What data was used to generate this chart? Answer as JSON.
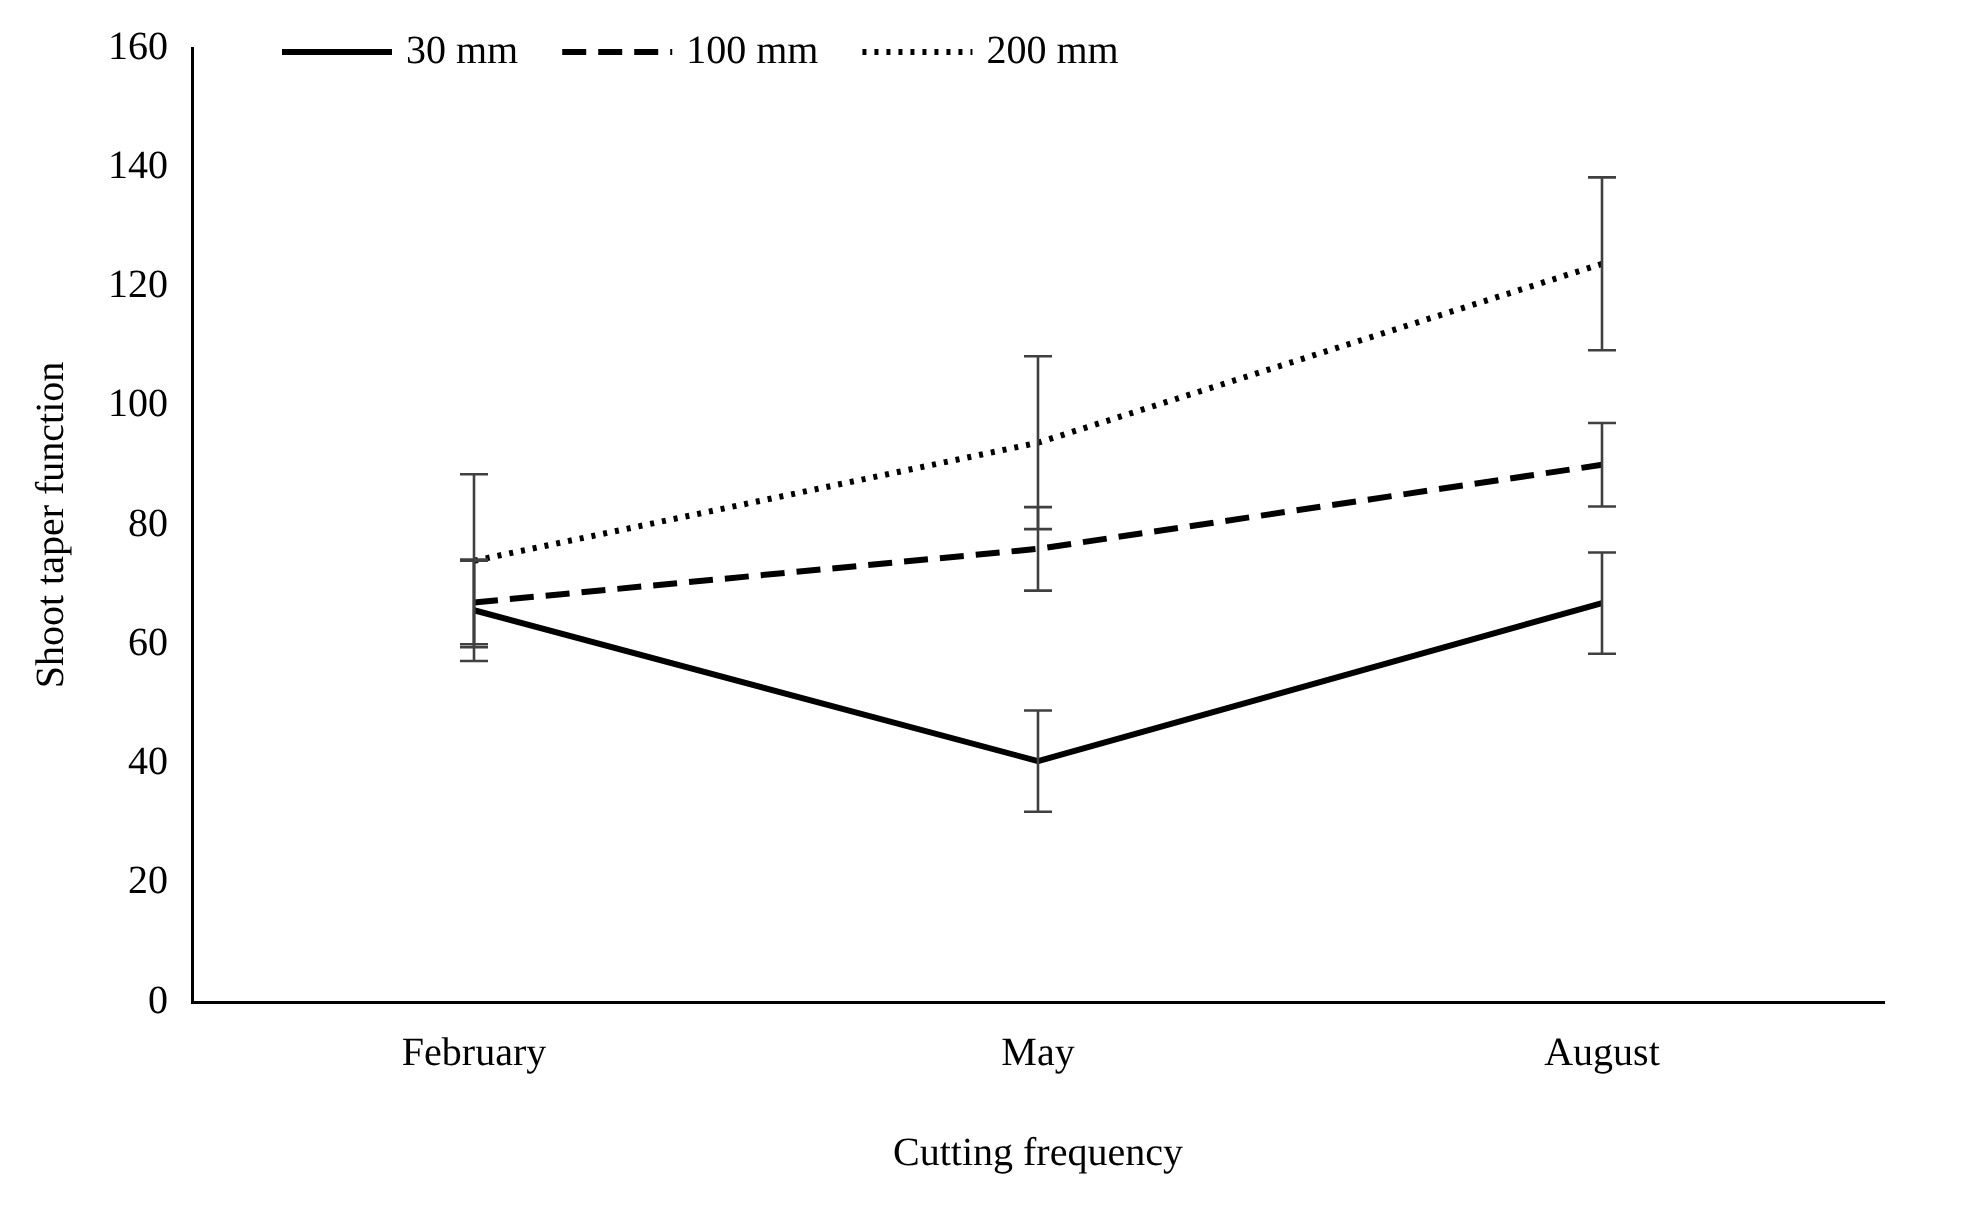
{
  "chart_data": {
    "type": "line",
    "xlabel": "Cutting frequency",
    "ylabel": "Shoot taper function",
    "categories": [
      "February",
      "May",
      "August"
    ],
    "series": [
      {
        "name": "30 mm",
        "color": "#000000",
        "line_style": "solid",
        "values": [
          65.7,
          40.4,
          66.9
        ],
        "errors": [
          8.5,
          8.5,
          8.5
        ]
      },
      {
        "name": "100 mm",
        "color": "#000000",
        "line_style": "dashed",
        "values": [
          67,
          76,
          90.1
        ],
        "errors": [
          7,
          7,
          7
        ]
      },
      {
        "name": "200 mm",
        "color": "#000000",
        "line_style": "dotted",
        "values": [
          74,
          93.8,
          123.8
        ],
        "errors": [
          14.5,
          14.5,
          14.5
        ]
      }
    ],
    "ylim": [
      0,
      160
    ],
    "yticks": [
      0,
      20,
      40,
      60,
      80,
      100,
      120,
      140,
      160
    ],
    "grid": false,
    "legend": "top left",
    "marker": "none"
  }
}
